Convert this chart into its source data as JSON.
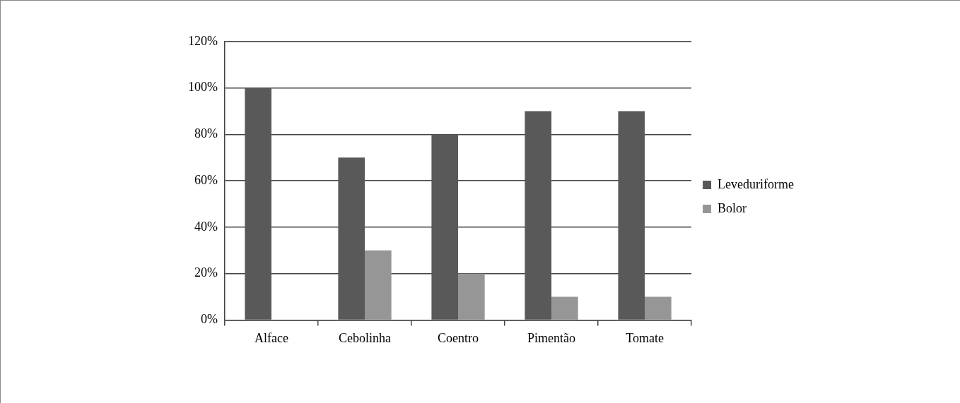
{
  "chart_data": {
    "type": "bar",
    "categories": [
      "Alface",
      "Cebolinha",
      "Coentro",
      "Pimentão",
      "Tomate"
    ],
    "series": [
      {
        "name": "Leveduriforme",
        "color": "#595959",
        "values": [
          100,
          70,
          80,
          90,
          90
        ]
      },
      {
        "name": "Bolor",
        "color": "#969696",
        "values": [
          0,
          30,
          20,
          10,
          10
        ]
      }
    ],
    "ylim": [
      0,
      120
    ],
    "yticks": [
      {
        "value": 0,
        "label": "0%"
      },
      {
        "value": 20,
        "label": "20%"
      },
      {
        "value": 40,
        "label": "40%"
      },
      {
        "value": 60,
        "label": "60%"
      },
      {
        "value": 80,
        "label": "80%"
      },
      {
        "value": 100,
        "label": "100%"
      },
      {
        "value": 120,
        "label": "120%"
      }
    ],
    "grid": "y",
    "legend": "right"
  }
}
